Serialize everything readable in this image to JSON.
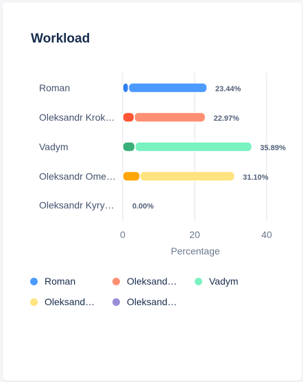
{
  "card": {
    "title": "Workload"
  },
  "chart_data": {
    "type": "bar",
    "orientation": "horizontal",
    "stacked": true,
    "title": "",
    "xlabel": "Percentage",
    "ylabel": "",
    "xlim": [
      0,
      40
    ],
    "xticks": [
      "0",
      "20",
      "40"
    ],
    "grid": true,
    "legend_position": "bottom",
    "categories": [
      "Roman",
      "Oleksandr Krok…",
      "Vadym",
      "Oleksandr Ome…",
      "Oleksandr Kyry…"
    ],
    "series": [
      {
        "name": "Roman",
        "values": [
          1.6,
          3.2,
          3.4,
          4.8,
          0
        ],
        "colors": [
          "#2f7ff2",
          "#ff5637",
          "#3aaf79",
          "#ffa60a",
          "#8f7fdb"
        ]
      },
      {
        "values": [
          21.84,
          19.77,
          32.49,
          26.3,
          0
        ],
        "colors": [
          "#4c9aff",
          "#ff8f73",
          "#79f2c0",
          "#ffe380",
          "#998dd9"
        ]
      }
    ],
    "value_labels": [
      "23.44%",
      "22.97%",
      "35.89%",
      "31.10%",
      "0.00%"
    ]
  },
  "legend": [
    {
      "label": "Roman",
      "color": "#4c9aff"
    },
    {
      "label": "Oleksand…",
      "color": "#ff8f73"
    },
    {
      "label": "Vadym",
      "color": "#79f2c0"
    },
    {
      "label": "Oleksand…",
      "color": "#ffe380"
    },
    {
      "label": "Oleksand…",
      "color": "#998dd9"
    }
  ]
}
